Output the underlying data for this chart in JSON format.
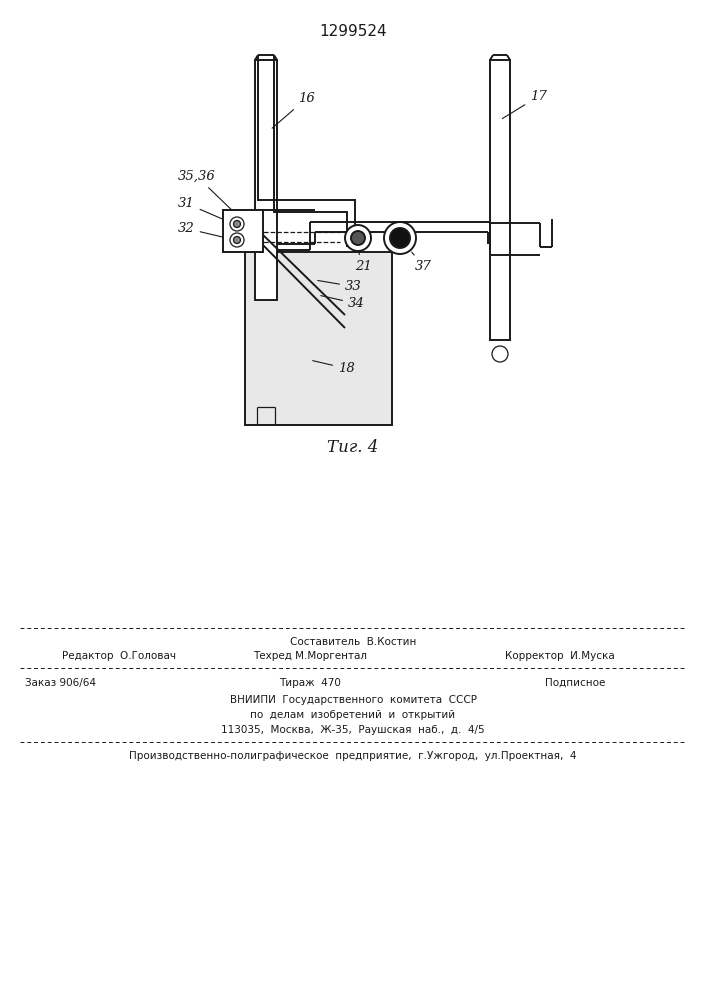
{
  "title_number": "1299524",
  "fig_label": "Τиг. 4",
  "background_color": "#ffffff",
  "line_color": "#1a1a1a",
  "footer": {
    "sostavitel": "Составитель  В.Костин",
    "redaktor": "Редактор  О.Головач",
    "tehred": "Техред М.Моргентал",
    "korrektor": "Корректор  И.Муска",
    "zakaz": "Заказ 906/64",
    "tirazh": "Тираж  470",
    "podpisnoe": "Подписное",
    "vniip1": "ВНИИПИ  Государственного  комитета  СССР",
    "vniip2": "по  делам  изобретений  и  открытий",
    "vniip3": "113035,  Москва,  Ж-35,  Раушская  наб.,  д.  4/5",
    "predp": "Производственно-полиграфическое  предприятие,  г.Ужгород,  ул.Проектная,  4"
  }
}
